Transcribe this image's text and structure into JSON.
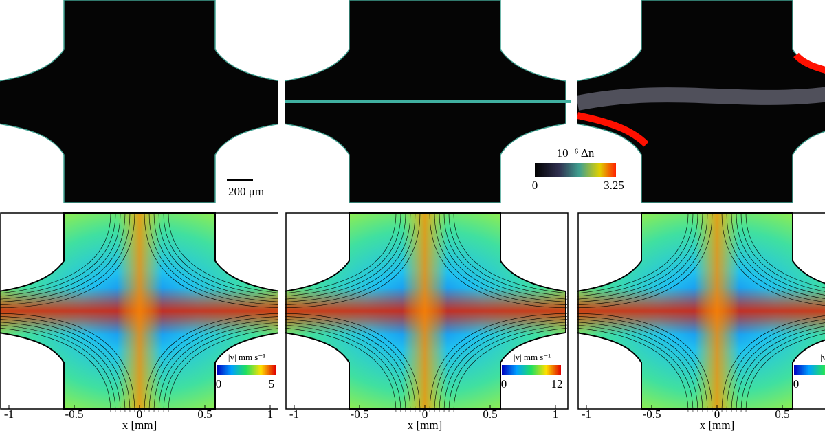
{
  "top_panels": {
    "scale_bar": "200 μm",
    "colorbar": {
      "label": "10⁻⁶ Δn",
      "min": 0,
      "max": 3.25
    }
  },
  "bottom_panels": [
    {
      "colorbar": {
        "label": "|v| mm s⁻¹",
        "min": 0,
        "max": 5
      },
      "x_ticks": [
        -1,
        -0.5,
        0,
        0.5,
        1
      ],
      "x_label": "x [mm]"
    },
    {
      "colorbar": {
        "label": "|v| mm s⁻¹",
        "min": 0,
        "max": 12
      },
      "x_ticks": [
        -1,
        -0.5,
        0,
        0.5,
        1
      ],
      "x_label": "x [mm]"
    },
    {
      "colorbar": {
        "label": "|v|",
        "min": 0
      },
      "x_ticks": [
        -1,
        -0.5,
        0,
        0.5
      ],
      "x_label": "x [mm]"
    }
  ]
}
